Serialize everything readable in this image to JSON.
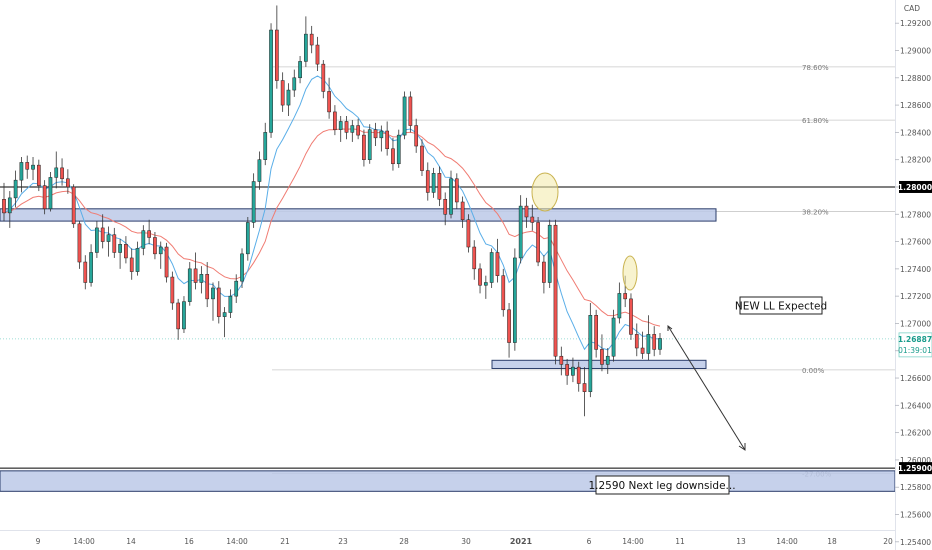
{
  "chart_data": {
    "type": "candlestick",
    "currency": "CAD",
    "y_range": [
      1.2534,
      1.2937
    ],
    "y_ticks": [
      "1.25400",
      "1.25600",
      "1.25800",
      "1.26000",
      "1.26200",
      "1.26400",
      "1.26600",
      "1.26800",
      "1.27000",
      "1.27200",
      "1.27400",
      "1.27600",
      "1.27800",
      "1.28000",
      "1.28200",
      "1.28400",
      "1.28600",
      "1.28800",
      "1.29000",
      "1.29200"
    ],
    "x_ticks": [
      "9",
      "14:00",
      "14",
      "16",
      "14:00",
      "21",
      "23",
      "28",
      "30",
      "2021",
      "6",
      "14:00",
      "11",
      "13",
      "14:00",
      "18",
      "20"
    ],
    "last_price": {
      "value": "1.26887",
      "countdown": "01:39:01"
    },
    "level_1_2800": {
      "value": "1.28000"
    },
    "level_1_2590": {
      "value": "1.25900"
    },
    "fib_levels": [
      {
        "label": "78.60%",
        "price": 1.2888
      },
      {
        "label": "61.80%",
        "price": 1.2849
      },
      {
        "label": "38.20%",
        "price": 1.2782
      },
      {
        "label": "0.00%",
        "price": 1.2666
      },
      {
        "label": "-27.00%",
        "price": 1.259
      }
    ],
    "zones": [
      {
        "name": "resistance-zone",
        "low": 1.2775,
        "high": 1.2784
      },
      {
        "name": "support-zone",
        "low": 1.2667,
        "high": 1.2673
      },
      {
        "name": "target-zone",
        "low": 1.2577,
        "high": 1.2592
      }
    ],
    "annotations": {
      "expected": "NEW LL Expected",
      "target": "1.2590 Next leg downside..."
    },
    "candles": [
      [
        1.2791,
        1.2803,
        1.2775,
        1.2781
      ],
      [
        1.2781,
        1.2797,
        1.277,
        1.2792
      ],
      [
        1.2792,
        1.2812,
        1.2785,
        1.2805
      ],
      [
        1.2805,
        1.2822,
        1.2796,
        1.2818
      ],
      [
        1.2818,
        1.2823,
        1.2806,
        1.2813
      ],
      [
        1.2813,
        1.2822,
        1.2805,
        1.2816
      ],
      [
        1.2816,
        1.282,
        1.2797,
        1.2801
      ],
      [
        1.2801,
        1.2805,
        1.278,
        1.2784
      ],
      [
        1.2784,
        1.2811,
        1.2782,
        1.2807
      ],
      [
        1.2807,
        1.2826,
        1.2799,
        1.2814
      ],
      [
        1.2814,
        1.2821,
        1.2801,
        1.2806
      ],
      [
        1.2806,
        1.2813,
        1.2795,
        1.28
      ],
      [
        1.28,
        1.2802,
        1.277,
        1.2773
      ],
      [
        1.2773,
        1.2775,
        1.274,
        1.2745
      ],
      [
        1.2745,
        1.275,
        1.2725,
        1.273
      ],
      [
        1.273,
        1.2758,
        1.2727,
        1.2752
      ],
      [
        1.2752,
        1.2775,
        1.2748,
        1.277
      ],
      [
        1.277,
        1.278,
        1.2755,
        1.276
      ],
      [
        1.276,
        1.2771,
        1.2749,
        1.2765
      ],
      [
        1.2765,
        1.277,
        1.2748,
        1.2752
      ],
      [
        1.2752,
        1.2762,
        1.274,
        1.2758
      ],
      [
        1.2758,
        1.2764,
        1.2744,
        1.2748
      ],
      [
        1.2748,
        1.2755,
        1.2732,
        1.2738
      ],
      [
        1.2738,
        1.276,
        1.2735,
        1.2755
      ],
      [
        1.2755,
        1.2772,
        1.275,
        1.2768
      ],
      [
        1.2768,
        1.2776,
        1.2758,
        1.2763
      ],
      [
        1.2763,
        1.2767,
        1.2747,
        1.2751
      ],
      [
        1.2751,
        1.276,
        1.274,
        1.2756
      ],
      [
        1.2756,
        1.2759,
        1.273,
        1.2734
      ],
      [
        1.2734,
        1.2738,
        1.271,
        1.2715
      ],
      [
        1.2715,
        1.2718,
        1.2688,
        1.2696
      ],
      [
        1.2696,
        1.272,
        1.2693,
        1.2716
      ],
      [
        1.2716,
        1.2745,
        1.2713,
        1.274
      ],
      [
        1.274,
        1.2752,
        1.2725,
        1.273
      ],
      [
        1.273,
        1.2742,
        1.2722,
        1.2736
      ],
      [
        1.2736,
        1.2745,
        1.2712,
        1.2718
      ],
      [
        1.2718,
        1.273,
        1.2702,
        1.2726
      ],
      [
        1.2726,
        1.2731,
        1.27,
        1.2705
      ],
      [
        1.2705,
        1.2712,
        1.269,
        1.2708
      ],
      [
        1.2708,
        1.2725,
        1.2704,
        1.272
      ],
      [
        1.272,
        1.2736,
        1.2715,
        1.2731
      ],
      [
        1.2731,
        1.2755,
        1.2726,
        1.2751
      ],
      [
        1.2751,
        1.2778,
        1.2746,
        1.2774
      ],
      [
        1.2774,
        1.281,
        1.277,
        1.2804
      ],
      [
        1.2804,
        1.2826,
        1.2798,
        1.282
      ],
      [
        1.282,
        1.2847,
        1.2816,
        1.284
      ],
      [
        1.284,
        1.292,
        1.2836,
        1.2915
      ],
      [
        1.2915,
        1.2933,
        1.2872,
        1.2878
      ],
      [
        1.2878,
        1.2884,
        1.2855,
        1.286
      ],
      [
        1.286,
        1.2876,
        1.2852,
        1.2871
      ],
      [
        1.2871,
        1.2886,
        1.2866,
        1.288
      ],
      [
        1.288,
        1.2896,
        1.2876,
        1.2892
      ],
      [
        1.2892,
        1.2925,
        1.2888,
        1.2912
      ],
      [
        1.2912,
        1.2918,
        1.2898,
        1.2904
      ],
      [
        1.2904,
        1.291,
        1.2885,
        1.289
      ],
      [
        1.289,
        1.2893,
        1.2865,
        1.287
      ],
      [
        1.287,
        1.288,
        1.285,
        1.2855
      ],
      [
        1.2855,
        1.286,
        1.2838,
        1.2842
      ],
      [
        1.2842,
        1.2852,
        1.2833,
        1.2848
      ],
      [
        1.2848,
        1.2852,
        1.2835,
        1.284
      ],
      [
        1.284,
        1.2849,
        1.2833,
        1.2845
      ],
      [
        1.2845,
        1.285,
        1.2835,
        1.2838
      ],
      [
        1.2838,
        1.2842,
        1.2815,
        1.282
      ],
      [
        1.282,
        1.2846,
        1.2817,
        1.2842
      ],
      [
        1.2842,
        1.2847,
        1.283,
        1.2836
      ],
      [
        1.2836,
        1.2845,
        1.2826,
        1.2841
      ],
      [
        1.2841,
        1.2848,
        1.2823,
        1.2828
      ],
      [
        1.2828,
        1.2836,
        1.2812,
        1.2817
      ],
      [
        1.2817,
        1.2842,
        1.2814,
        1.2838
      ],
      [
        1.2838,
        1.287,
        1.2835,
        1.2866
      ],
      [
        1.2866,
        1.287,
        1.284,
        1.2845
      ],
      [
        1.2845,
        1.285,
        1.2825,
        1.283
      ],
      [
        1.283,
        1.2835,
        1.2808,
        1.2812
      ],
      [
        1.2812,
        1.2818,
        1.279,
        1.2796
      ],
      [
        1.2796,
        1.2814,
        1.2792,
        1.281
      ],
      [
        1.281,
        1.2815,
        1.2786,
        1.2791
      ],
      [
        1.2791,
        1.2796,
        1.2772,
        1.278
      ],
      [
        1.278,
        1.2812,
        1.2777,
        1.2806
      ],
      [
        1.2806,
        1.281,
        1.2784,
        1.2789
      ],
      [
        1.2789,
        1.2793,
        1.277,
        1.2776
      ],
      [
        1.2776,
        1.278,
        1.2752,
        1.2756
      ],
      [
        1.2756,
        1.2761,
        1.2732,
        1.274
      ],
      [
        1.274,
        1.2744,
        1.2722,
        1.2728
      ],
      [
        1.2728,
        1.2735,
        1.2718,
        1.273
      ],
      [
        1.273,
        1.2755,
        1.2726,
        1.2752
      ],
      [
        1.2752,
        1.2762,
        1.273,
        1.2735
      ],
      [
        1.2735,
        1.274,
        1.2705,
        1.271
      ],
      [
        1.271,
        1.2715,
        1.2675,
        1.2686
      ],
      [
        1.2686,
        1.2755,
        1.268,
        1.2748
      ],
      [
        1.2748,
        1.2794,
        1.2744,
        1.2786
      ],
      [
        1.2786,
        1.2792,
        1.277,
        1.2778
      ],
      [
        1.2778,
        1.2787,
        1.2768,
        1.2774
      ],
      [
        1.2774,
        1.2778,
        1.2742,
        1.2745
      ],
      [
        1.2745,
        1.275,
        1.2722,
        1.273
      ],
      [
        1.273,
        1.2776,
        1.2726,
        1.2772
      ],
      [
        1.2772,
        1.2776,
        1.267,
        1.2676
      ],
      [
        1.2676,
        1.2683,
        1.2662,
        1.267
      ],
      [
        1.267,
        1.2674,
        1.2655,
        1.2662
      ],
      [
        1.2662,
        1.2675,
        1.2657,
        1.2668
      ],
      [
        1.2668,
        1.2672,
        1.265,
        1.2656
      ],
      [
        1.2656,
        1.2668,
        1.2632,
        1.265
      ],
      [
        1.265,
        1.2715,
        1.2646,
        1.2706
      ],
      [
        1.2706,
        1.271,
        1.2675,
        1.2681
      ],
      [
        1.2681,
        1.2692,
        1.2665,
        1.267
      ],
      [
        1.267,
        1.2682,
        1.2663,
        1.2676
      ],
      [
        1.2676,
        1.271,
        1.2672,
        1.2704
      ],
      [
        1.2704,
        1.273,
        1.27,
        1.2722
      ],
      [
        1.2722,
        1.2735,
        1.2712,
        1.2718
      ],
      [
        1.2718,
        1.2722,
        1.2688,
        1.2692
      ],
      [
        1.2692,
        1.27,
        1.2676,
        1.2682
      ],
      [
        1.2682,
        1.2694,
        1.2674,
        1.2678
      ],
      [
        1.2678,
        1.2706,
        1.2673,
        1.2692
      ],
      [
        1.2692,
        1.2698,
        1.2676,
        1.2681
      ],
      [
        1.2681,
        1.2693,
        1.2677,
        1.2689
      ]
    ]
  }
}
